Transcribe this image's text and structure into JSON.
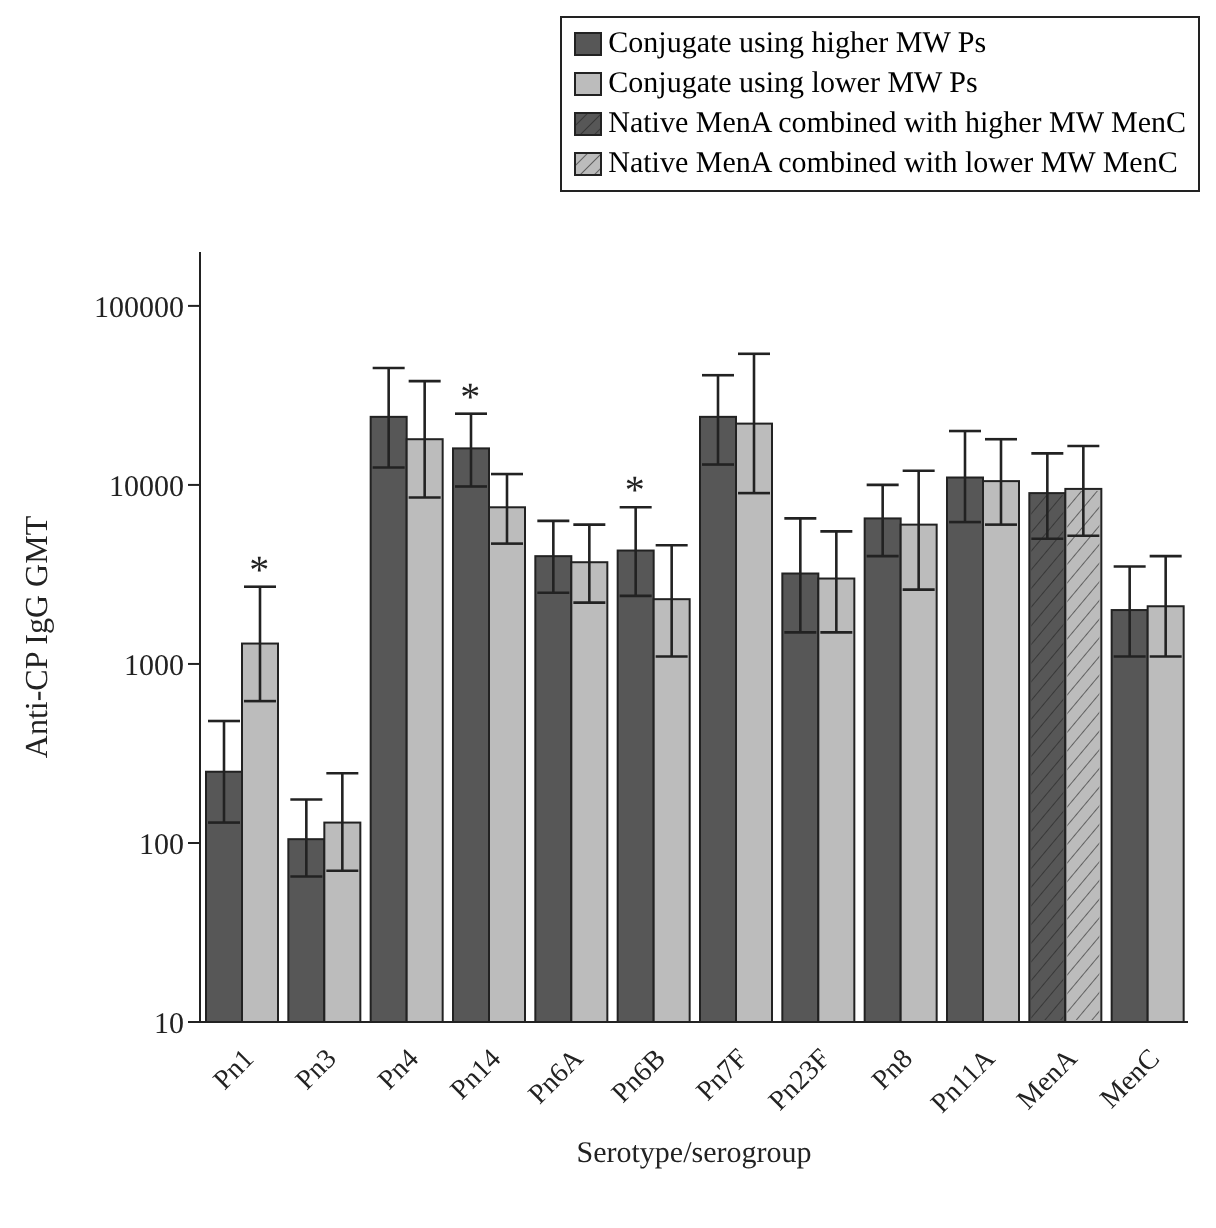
{
  "chart_data": {
    "type": "bar",
    "xlabel": "Serotype/serogroup",
    "ylabel": "Anti-CP IgG GMT",
    "log": "y",
    "ylim": [
      10,
      200000
    ],
    "yticks": [
      10,
      100,
      1000,
      10000,
      100000
    ],
    "legend": "top right",
    "grid": false,
    "categories": [
      "Pn1",
      "Pn3",
      "Pn4",
      "Pn14",
      "Pn6A",
      "Pn6B",
      "Pn7F",
      "Pn23F",
      "Pn8",
      "Pn11A",
      "MenA",
      "MenC"
    ],
    "series": [
      {
        "name": "Conjugate using higher MW Ps",
        "color": "#575757",
        "values": [
          250,
          105,
          24000,
          16000,
          4000,
          4300,
          24000,
          3200,
          6500,
          11000,
          null,
          2000
        ],
        "errors": [
          [
            130,
            480
          ],
          [
            65,
            175
          ],
          [
            12500,
            45000
          ],
          [
            9800,
            25000
          ],
          [
            2500,
            6300
          ],
          [
            2400,
            7500
          ],
          [
            13000,
            41000
          ],
          [
            1500,
            6500
          ],
          [
            4000,
            10000
          ],
          [
            6200,
            20000
          ],
          null,
          [
            1100,
            3500
          ]
        ]
      },
      {
        "name": "Conjugate using lower MW Ps",
        "color": "#bcbcbc",
        "values": [
          1300,
          130,
          18000,
          7500,
          3700,
          2300,
          22000,
          3000,
          6000,
          10500,
          null,
          2100
        ],
        "errors": [
          [
            620,
            2700
          ],
          [
            70,
            245
          ],
          [
            8500,
            38000
          ],
          [
            4700,
            11500
          ],
          [
            2200,
            6000
          ],
          [
            1100,
            4600
          ],
          [
            9000,
            54000
          ],
          [
            1500,
            5500
          ],
          [
            2600,
            12000
          ],
          [
            6000,
            18000
          ],
          null,
          [
            1100,
            4000
          ]
        ]
      },
      {
        "name": "Native MenA combined with higher MW MenC",
        "color": "#575757",
        "values": [
          null,
          null,
          null,
          null,
          null,
          null,
          null,
          null,
          null,
          null,
          9000,
          null
        ],
        "errors": [
          null,
          null,
          null,
          null,
          null,
          null,
          null,
          null,
          null,
          null,
          [
            5000,
            15000
          ],
          null
        ]
      },
      {
        "name": "Native MenA combined with lower MW MenC",
        "color": "#bcbcbc",
        "values": [
          null,
          null,
          null,
          null,
          null,
          null,
          null,
          null,
          null,
          null,
          9500,
          null
        ],
        "errors": [
          null,
          null,
          null,
          null,
          null,
          null,
          null,
          null,
          null,
          null,
          [
            5200,
            16500
          ],
          null
        ]
      }
    ],
    "annotations": [
      {
        "text": "*",
        "x": "Pn1",
        "y": 1300
      },
      {
        "text": "*",
        "x": "Pn14",
        "y": 16000
      },
      {
        "text": "*",
        "x": "Pn6B",
        "y": 4300
      }
    ]
  }
}
